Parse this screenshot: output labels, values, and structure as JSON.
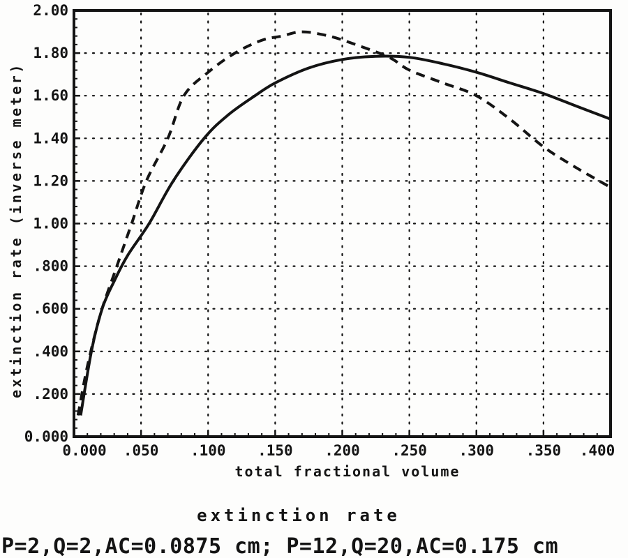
{
  "page": {
    "background": "#fdfdfc",
    "ink_color": "#141414"
  },
  "chart_data": {
    "type": "line",
    "title": "extinction rate",
    "caption": "P=2,Q=2,AC=0.0875 cm; P=12,Q=20,AC=0.175 cm",
    "xlabel": "total fractional volume",
    "ylabel": "extinction rate (inverse meter)",
    "xlim": [
      0,
      0.4
    ],
    "ylim": [
      0,
      2.0
    ],
    "grid": "dotted",
    "legend_position": "none",
    "axis_color": "#141414",
    "x_ticks": {
      "values": [
        0,
        0.05,
        0.1,
        0.15,
        0.2,
        0.25,
        0.3,
        0.35,
        0.4
      ],
      "labels": [
        "0.000",
        ".050",
        ".100",
        ".150",
        ".200",
        ".250",
        ".300",
        ".350",
        ".400"
      ],
      "minor_step": 0.01
    },
    "y_ticks": {
      "values": [
        0,
        0.2,
        0.4,
        0.6,
        0.8,
        1.0,
        1.2,
        1.4,
        1.6,
        1.8,
        2.0
      ],
      "labels": [
        "0.000",
        ".200",
        ".400",
        ".600",
        ".800",
        "1.00",
        "1.20",
        "1.40",
        "1.60",
        "1.80",
        "2.00"
      ],
      "minor_step": 0.04
    },
    "series": [
      {
        "name": "P=2,Q=2,AC=0.0875 cm",
        "line_style": "dashed",
        "color": "#141414",
        "x": [
          0.003,
          0.01,
          0.02,
          0.032,
          0.043,
          0.054,
          0.07,
          0.082,
          0.1,
          0.12,
          0.14,
          0.155,
          0.17,
          0.19,
          0.21,
          0.235,
          0.25,
          0.275,
          0.3,
          0.325,
          0.35,
          0.375,
          0.4
        ],
        "y": [
          0.1,
          0.33,
          0.58,
          0.8,
          1.0,
          1.2,
          1.4,
          1.6,
          1.71,
          1.8,
          1.86,
          1.88,
          1.9,
          1.88,
          1.84,
          1.78,
          1.72,
          1.66,
          1.6,
          1.49,
          1.36,
          1.26,
          1.17
        ]
      },
      {
        "name": "P=12,Q=20,AC=0.175 cm",
        "line_style": "solid",
        "color": "#141414",
        "x": [
          0.005,
          0.013,
          0.021,
          0.03,
          0.04,
          0.056,
          0.074,
          0.097,
          0.115,
          0.135,
          0.15,
          0.175,
          0.2,
          0.225,
          0.25,
          0.275,
          0.3,
          0.325,
          0.35,
          0.375,
          0.4
        ],
        "y": [
          0.1,
          0.4,
          0.6,
          0.73,
          0.85,
          1.0,
          1.2,
          1.4,
          1.51,
          1.6,
          1.66,
          1.73,
          1.77,
          1.785,
          1.78,
          1.75,
          1.71,
          1.66,
          1.61,
          1.55,
          1.49
        ]
      }
    ]
  }
}
